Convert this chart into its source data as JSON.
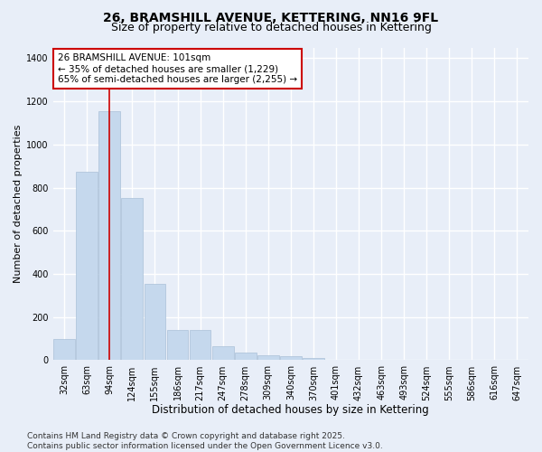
{
  "title": "26, BRAMSHILL AVENUE, KETTERING, NN16 9FL",
  "subtitle": "Size of property relative to detached houses in Kettering",
  "xlabel": "Distribution of detached houses by size in Kettering",
  "ylabel": "Number of detached properties",
  "categories": [
    "32sqm",
    "63sqm",
    "94sqm",
    "124sqm",
    "155sqm",
    "186sqm",
    "217sqm",
    "247sqm",
    "278sqm",
    "309sqm",
    "340sqm",
    "370sqm",
    "401sqm",
    "432sqm",
    "463sqm",
    "493sqm",
    "524sqm",
    "555sqm",
    "586sqm",
    "616sqm",
    "647sqm"
  ],
  "values": [
    100,
    875,
    1155,
    752,
    355,
    140,
    140,
    63,
    35,
    25,
    18,
    10,
    0,
    0,
    0,
    0,
    0,
    0,
    0,
    0,
    0
  ],
  "bar_color": "#c5d8ed",
  "bar_edge_color": "#aac0d8",
  "vline_x": 2,
  "vline_color": "#cc0000",
  "annotation_text": "26 BRAMSHILL AVENUE: 101sqm\n← 35% of detached houses are smaller (1,229)\n65% of semi-detached houses are larger (2,255) →",
  "annotation_box_color": "white",
  "annotation_box_edge": "#cc0000",
  "ylim": [
    0,
    1450
  ],
  "yticks": [
    0,
    200,
    400,
    600,
    800,
    1000,
    1200,
    1400
  ],
  "background_color": "#e8eef8",
  "plot_bg_color": "#e8eef8",
  "grid_color": "white",
  "footer": "Contains HM Land Registry data © Crown copyright and database right 2025.\nContains public sector information licensed under the Open Government Licence v3.0.",
  "title_fontsize": 10,
  "subtitle_fontsize": 9,
  "xlabel_fontsize": 8.5,
  "ylabel_fontsize": 8,
  "tick_fontsize": 7,
  "footer_fontsize": 6.5,
  "annot_fontsize": 7.5
}
